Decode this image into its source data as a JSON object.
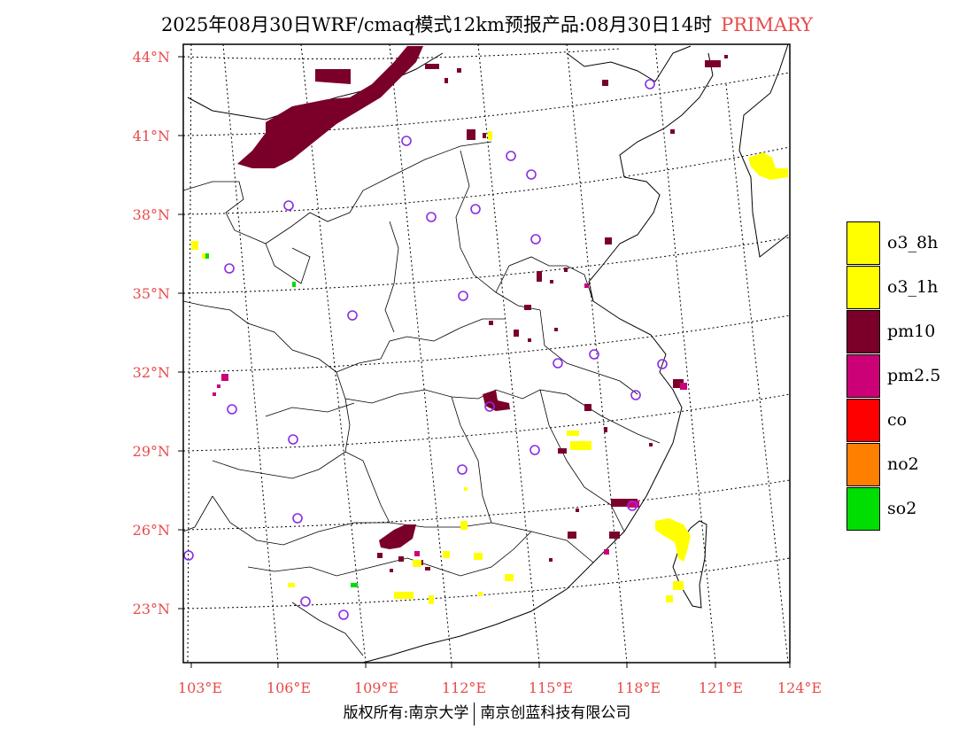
{
  "header": {
    "title": "2025年08月30日WRF/cmaq模式12km预报产品:08月30日14时",
    "tag": "PRIMARY"
  },
  "axes": {
    "lon_labels": [
      "103°E",
      "106°E",
      "109°E",
      "112°E",
      "115°E",
      "118°E",
      "121°E",
      "124°E"
    ],
    "lat_labels": [
      "44°N",
      "41°N",
      "38°N",
      "35°N",
      "32°N",
      "29°N",
      "26°N",
      "23°N"
    ],
    "label_color": "#e84a4a"
  },
  "legend": [
    {
      "label": "o3_8h",
      "color": "#ffff00"
    },
    {
      "label": "o3_1h",
      "color": "#ffff00"
    },
    {
      "label": "pm10",
      "color": "#7a0029"
    },
    {
      "label": "pm2.5",
      "color": "#cc0077"
    },
    {
      "label": "co",
      "color": "#ff0000"
    },
    {
      "label": "no2",
      "color": "#ff8000"
    },
    {
      "label": "so2",
      "color": "#00dd00"
    }
  ],
  "footer": {
    "left": "版权所有:南京大学",
    "right": "南京创蓝科技有限公司"
  },
  "colors": {
    "pm10": "#7a0029",
    "pm25": "#cc0077",
    "o3": "#ffff00",
    "so2": "#00dd00",
    "station": "#8a2be2"
  }
}
